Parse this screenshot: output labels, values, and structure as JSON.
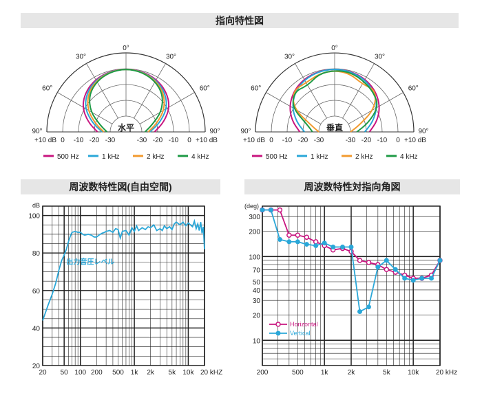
{
  "headers": {
    "directivity": "指向特性図",
    "frequency_response": "周波数特性図(自由空間)",
    "directivity_angle": "周波数特性対指向角図"
  },
  "polar_common": {
    "angle_labels": [
      "0°",
      "30°",
      "30°",
      "60°",
      "60°",
      "90°",
      "90°"
    ],
    "db_labels": [
      "+10 dB",
      "0",
      "-10",
      "-20",
      "-30",
      "-30",
      "-20",
      "-10",
      "0",
      "+10 dB"
    ],
    "legend": [
      {
        "label": "500 Hz",
        "color": "#c8157f"
      },
      {
        "label": "1 kHz",
        "color": "#2aa7d8"
      },
      {
        "label": "2 kHz",
        "color": "#f29a2e"
      },
      {
        "label": "4 kHz",
        "color": "#1e9a45"
      }
    ]
  },
  "chart_data": [
    {
      "type": "line",
      "polar": true,
      "center_label": "水平",
      "angle_range_deg": [
        -90,
        90
      ],
      "r_range_db": [
        -40,
        10
      ],
      "series": [
        {
          "name": "500 Hz",
          "color": "#c8157f",
          "angles": [
            -90,
            -75,
            -60,
            -45,
            -30,
            -15,
            0,
            15,
            30,
            45,
            60,
            75,
            90
          ],
          "db": [
            -22,
            -15,
            -8,
            -4,
            -1.5,
            -0.3,
            0,
            -0.3,
            -1.5,
            -4,
            -8,
            -15,
            -22
          ]
        },
        {
          "name": "1 kHz",
          "color": "#2aa7d8",
          "angles": [
            -90,
            -75,
            -60,
            -45,
            -30,
            -15,
            0,
            15,
            30,
            45,
            60,
            75,
            90
          ],
          "db": [
            -25,
            -18,
            -10,
            -5,
            -2,
            -0.5,
            0,
            -0.5,
            -2,
            -5,
            -10,
            -18,
            -25
          ]
        },
        {
          "name": "2 kHz",
          "color": "#f29a2e",
          "angles": [
            -90,
            -75,
            -60,
            -45,
            -30,
            -15,
            0,
            15,
            30,
            45,
            60,
            75,
            90
          ],
          "db": [
            -26,
            -20,
            -12,
            -6,
            -2.5,
            -0.6,
            0,
            -0.6,
            -2.5,
            -6,
            -12,
            -20,
            -26
          ]
        },
        {
          "name": "4 kHz",
          "color": "#1e9a45",
          "angles": [
            -90,
            -75,
            -60,
            -45,
            -30,
            -15,
            0,
            15,
            30,
            45,
            60,
            75,
            90
          ],
          "db": [
            -28,
            -23,
            -14,
            -7,
            -3,
            -0.8,
            0,
            -0.8,
            -3,
            -7,
            -14,
            -23,
            -28
          ]
        }
      ]
    },
    {
      "type": "line",
      "polar": true,
      "center_label": "垂直",
      "angle_range_deg": [
        -90,
        90
      ],
      "r_range_db": [
        -40,
        10
      ],
      "series": [
        {
          "name": "500 Hz",
          "color": "#c8157f",
          "angles": [
            -90,
            -75,
            -60,
            -45,
            -30,
            -15,
            0,
            15,
            30,
            45,
            60,
            75,
            90
          ],
          "db": [
            -18,
            -12,
            -7,
            -3.5,
            -1.3,
            -0.3,
            0,
            -0.3,
            -1.3,
            -3.5,
            -7,
            -12,
            -18
          ]
        },
        {
          "name": "1 kHz",
          "color": "#2aa7d8",
          "angles": [
            -90,
            -75,
            -60,
            -45,
            -30,
            -15,
            0,
            15,
            30,
            45,
            60,
            75,
            90
          ],
          "db": [
            -21,
            -15,
            -9,
            -4.5,
            -1.8,
            -0.5,
            0,
            -0.5,
            -1.8,
            -4.5,
            -9,
            -15,
            -21
          ]
        },
        {
          "name": "2 kHz",
          "color": "#f29a2e",
          "angles": [
            -90,
            -75,
            -60,
            -45,
            -30,
            -15,
            0,
            15,
            30,
            45,
            60,
            75,
            90
          ],
          "db": [
            -30,
            -25,
            -10,
            -3,
            -4,
            -2,
            -1,
            -2,
            -5,
            -3,
            -11,
            -24,
            -30
          ]
        },
        {
          "name": "4 kHz",
          "color": "#1e9a45",
          "angles": [
            -90,
            -75,
            -60,
            -45,
            -30,
            -15,
            0,
            15,
            30,
            45,
            60,
            75,
            90
          ],
          "db": [
            -26,
            -22,
            -9,
            -4,
            -6,
            -2,
            -1,
            -1,
            -3,
            -5,
            -8,
            -18,
            -26
          ]
        }
      ]
    },
    {
      "type": "line",
      "x_scale": "log",
      "xlim": [
        20,
        20000
      ],
      "ylim": [
        20,
        105
      ],
      "ylabel": "dB",
      "x_ticks": [
        20,
        50,
        100,
        200,
        500,
        1000,
        2000,
        5000,
        10000,
        20000
      ],
      "x_tick_labels": [
        "20",
        "50",
        "100",
        "200",
        "500",
        "1k",
        "2k",
        "5k",
        "10k",
        "20 kHZ"
      ],
      "y_ticks": [
        20,
        40,
        60,
        80,
        100
      ],
      "y_tick_labels": [
        "20",
        "40",
        "60",
        "80",
        "100"
      ],
      "annotation": "出力音圧レベル",
      "series": [
        {
          "color": "#2aa7d8",
          "x": [
            20,
            25,
            30,
            35,
            40,
            45,
            50,
            55,
            60,
            65,
            70,
            80,
            90,
            100,
            110,
            120,
            140,
            160,
            180,
            200,
            220,
            250,
            280,
            300,
            350,
            400,
            450,
            500,
            550,
            600,
            700,
            800,
            900,
            1000,
            1100,
            1200,
            1400,
            1600,
            1800,
            2000,
            2300,
            2600,
            3000,
            3300,
            3600,
            4000,
            4500,
            5000,
            5500,
            6000,
            7000,
            8000,
            9000,
            10000,
            11000,
            12000,
            13000,
            14000,
            15000,
            16000,
            17000,
            18000,
            19000,
            20000
          ],
          "y": [
            44,
            52,
            58,
            64,
            71,
            76,
            79,
            82,
            86,
            89,
            91,
            91.5,
            91,
            91,
            90,
            89.5,
            90,
            89.5,
            88.5,
            88.5,
            89.5,
            90.5,
            91,
            91.5,
            92,
            91,
            93,
            92.5,
            88,
            91.5,
            92,
            89.5,
            93.5,
            91.5,
            94.5,
            92,
            93.5,
            92.5,
            94,
            93.5,
            95,
            92,
            93,
            92,
            94.5,
            93,
            94,
            92.5,
            95.5,
            96.5,
            95,
            96.5,
            94.5,
            96,
            95,
            94,
            97,
            93,
            95.5,
            92,
            96.5,
            90.5,
            94,
            82
          ]
        }
      ]
    },
    {
      "type": "line",
      "x_scale": "log",
      "y_scale": "log",
      "xlim": [
        200,
        20000
      ],
      "ylim": [
        5,
        400
      ],
      "ylabel": "(deg)",
      "x_ticks": [
        200,
        500,
        1000,
        2000,
        5000,
        10000,
        20000
      ],
      "x_tick_labels": [
        "200",
        "500",
        "1k",
        "2k",
        "5k",
        "10k",
        "20 kHz"
      ],
      "y_ticks": [
        10,
        20,
        30,
        40,
        50,
        70,
        100,
        200,
        300
      ],
      "y_tick_labels": [
        "10",
        "20",
        "30",
        "40",
        "50",
        "70",
        "100",
        "200",
        "300"
      ],
      "series": [
        {
          "name": "Horizontal",
          "color": "#c8157f",
          "x": [
            200,
            250,
            315,
            400,
            500,
            630,
            800,
            1000,
            1250,
            1600,
            2000,
            2500,
            3150,
            4000,
            5000,
            6300,
            8000,
            10000,
            12500,
            16000,
            20000
          ],
          "y": [
            360,
            360,
            360,
            180,
            180,
            170,
            150,
            135,
            120,
            125,
            115,
            90,
            85,
            80,
            70,
            65,
            60,
            55,
            55,
            60,
            90
          ]
        },
        {
          "name": "Vertical",
          "color": "#2aa7d8",
          "x": [
            200,
            250,
            315,
            400,
            500,
            630,
            800,
            1000,
            1250,
            1600,
            2000,
            2500,
            3150,
            4000,
            5000,
            6300,
            8000,
            10000,
            12500,
            16000,
            20000
          ],
          "y": [
            360,
            360,
            160,
            150,
            150,
            140,
            135,
            145,
            130,
            130,
            130,
            22,
            25,
            75,
            90,
            70,
            55,
            52,
            55,
            55,
            90
          ]
        }
      ]
    }
  ]
}
